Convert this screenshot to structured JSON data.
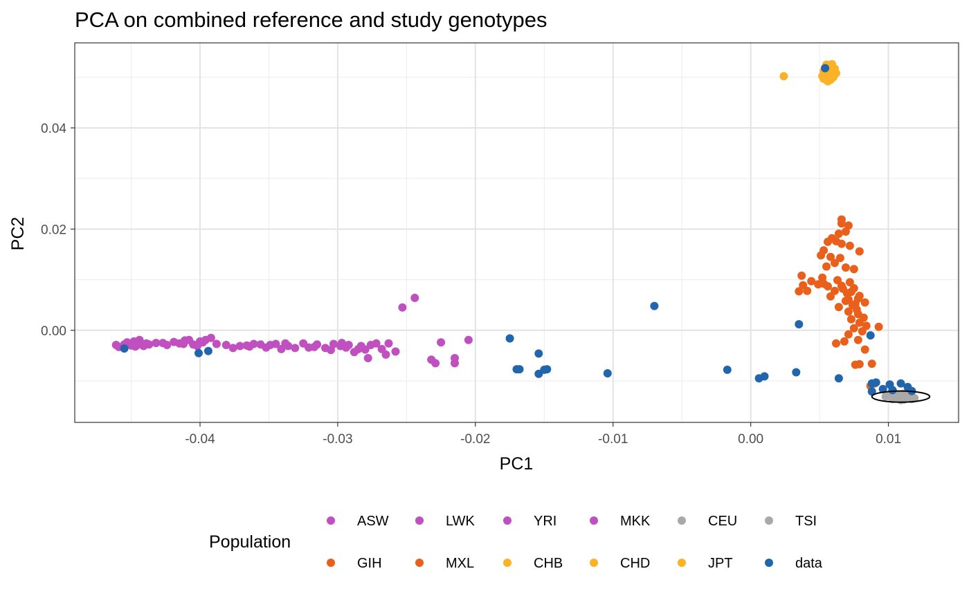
{
  "chart_data": {
    "type": "scatter",
    "title": "PCA on combined reference and study genotypes",
    "xlabel": "PC1",
    "ylabel": "PC2",
    "xlim": [
      -0.0491,
      0.0151
    ],
    "ylim": [
      -0.0182,
      0.0568
    ],
    "x_ticks": [
      -0.04,
      -0.03,
      -0.02,
      -0.01,
      0.0,
      0.01
    ],
    "x_tick_labels": [
      "-0.04",
      "-0.03",
      "-0.02",
      "-0.01",
      "0.00",
      "0.01"
    ],
    "y_ticks": [
      0.0,
      0.02,
      0.04
    ],
    "y_tick_labels": [
      "0.00",
      "0.02",
      "0.04"
    ],
    "grid": true,
    "legend": {
      "title": "Population",
      "position": "bottom",
      "entries": [
        {
          "label": "ASW",
          "color": "#c04fc0"
        },
        {
          "label": "LWK",
          "color": "#c04fc0"
        },
        {
          "label": "YRI",
          "color": "#c04fc0"
        },
        {
          "label": "MKK",
          "color": "#c04fc0"
        },
        {
          "label": "CEU",
          "color": "#a9a9a9"
        },
        {
          "label": "TSI",
          "color": "#a9a9a9"
        },
        {
          "label": "GIH",
          "color": "#e8601c"
        },
        {
          "label": "MXL",
          "color": "#e8601c"
        },
        {
          "label": "CHB",
          "color": "#fbb227"
        },
        {
          "label": "CHD",
          "color": "#fbb227"
        },
        {
          "label": "JPT",
          "color": "#fbb227"
        },
        {
          "label": "data",
          "color": "#2166ac"
        }
      ]
    },
    "annotation": {
      "type": "ellipse",
      "center": [
        0.0109,
        -0.0131
      ],
      "radii": [
        0.0021,
        0.0011
      ]
    },
    "series": [
      {
        "name": "ASW",
        "color": "#c04fc0",
        "points": [
          [
            -0.0455,
            -0.0028
          ],
          [
            -0.0448,
            -0.0022
          ],
          [
            -0.0441,
            -0.0031
          ],
          [
            -0.0432,
            -0.0025
          ],
          [
            -0.0415,
            -0.0026
          ],
          [
            -0.0408,
            -0.0019
          ],
          [
            -0.0398,
            -0.0024
          ],
          [
            -0.0381,
            -0.0029
          ],
          [
            -0.0364,
            -0.0032
          ],
          [
            -0.0345,
            -0.0027
          ],
          [
            -0.0331,
            -0.0035
          ],
          [
            -0.0315,
            -0.0028
          ],
          [
            -0.0298,
            -0.0031
          ],
          [
            -0.0285,
            -0.0037
          ],
          [
            -0.0276,
            -0.0029
          ],
          [
            -0.0263,
            -0.0026
          ],
          [
            -0.0253,
            0.0045
          ],
          [
            -0.0244,
            0.0064
          ],
          [
            -0.0232,
            -0.0058
          ],
          [
            -0.0229,
            -0.0065
          ],
          [
            -0.0215,
            -0.0055
          ],
          [
            -0.0215,
            -0.0065
          ],
          [
            -0.0205,
            -0.0019
          ],
          [
            -0.0225,
            -0.0024
          ]
        ]
      },
      {
        "name": "LWK",
        "color": "#c04fc0",
        "points": [
          [
            -0.0461,
            -0.0029
          ],
          [
            -0.0459,
            -0.0033
          ],
          [
            -0.0451,
            -0.0027
          ],
          [
            -0.0446,
            -0.003
          ],
          [
            -0.0444,
            -0.0019
          ],
          [
            -0.0437,
            -0.0028
          ],
          [
            -0.0427,
            -0.0025
          ],
          [
            -0.0419,
            -0.0023
          ],
          [
            -0.0411,
            -0.002
          ],
          [
            -0.0405,
            -0.0028
          ],
          [
            -0.0396,
            -0.0019
          ],
          [
            -0.0388,
            -0.0027
          ],
          [
            -0.0371,
            -0.0031
          ],
          [
            -0.0356,
            -0.0028
          ],
          [
            -0.0341,
            -0.0037
          ],
          [
            -0.0325,
            -0.0026
          ],
          [
            -0.0309,
            -0.0035
          ],
          [
            -0.0292,
            -0.0029
          ]
        ]
      },
      {
        "name": "YRI",
        "color": "#c04fc0",
        "points": [
          [
            -0.0453,
            -0.0024
          ],
          [
            -0.0447,
            -0.0032
          ],
          [
            -0.0439,
            -0.0026
          ],
          [
            -0.0424,
            -0.0029
          ],
          [
            -0.0402,
            -0.0031
          ],
          [
            -0.0392,
            -0.0015
          ],
          [
            -0.0376,
            -0.0035
          ],
          [
            -0.0361,
            -0.0027
          ],
          [
            -0.0349,
            -0.0029
          ],
          [
            -0.0336,
            -0.0031
          ],
          [
            -0.0321,
            -0.0034
          ],
          [
            -0.0305,
            -0.0039
          ],
          [
            -0.0297,
            -0.0025
          ],
          [
            -0.0288,
            -0.0043
          ],
          [
            -0.028,
            -0.0038
          ],
          [
            -0.0272,
            -0.0026
          ],
          [
            -0.0258,
            -0.0042
          ]
        ]
      },
      {
        "name": "MKK",
        "color": "#c04fc0",
        "points": [
          [
            -0.045,
            -0.003
          ],
          [
            -0.0443,
            -0.0025
          ],
          [
            -0.0412,
            -0.0027
          ],
          [
            -0.04,
            -0.0022
          ],
          [
            -0.0366,
            -0.003
          ],
          [
            -0.0352,
            -0.0034
          ],
          [
            -0.0338,
            -0.0026
          ],
          [
            -0.0317,
            -0.0033
          ],
          [
            -0.0303,
            -0.0027
          ],
          [
            -0.0294,
            -0.0034
          ],
          [
            -0.0283,
            -0.0031
          ],
          [
            -0.0278,
            -0.0055
          ],
          [
            -0.0268,
            -0.0037
          ],
          [
            -0.0265,
            -0.0048
          ]
        ]
      },
      {
        "name": "CEU",
        "color": "#a9a9a9",
        "points": [
          [
            0.0101,
            -0.0128
          ],
          [
            0.0106,
            -0.0134
          ],
          [
            0.011,
            -0.0126
          ],
          [
            0.0113,
            -0.0131
          ],
          [
            0.0117,
            -0.0136
          ],
          [
            0.0104,
            -0.0123
          ],
          [
            0.0109,
            -0.0138
          ],
          [
            0.0115,
            -0.0128
          ]
        ]
      },
      {
        "name": "TSI",
        "color": "#a9a9a9",
        "points": [
          [
            0.0098,
            -0.0131
          ],
          [
            0.0103,
            -0.0136
          ],
          [
            0.0108,
            -0.013
          ],
          [
            0.0112,
            -0.0125
          ],
          [
            0.0116,
            -0.0132
          ],
          [
            0.0119,
            -0.0134
          ],
          [
            0.0107,
            -0.0127
          ],
          [
            0.0111,
            -0.0137
          ]
        ]
      },
      {
        "name": "GIH",
        "color": "#e8601c",
        "points": [
          [
            0.0066,
            0.0219
          ],
          [
            0.0066,
            0.0211
          ],
          [
            0.0071,
            0.0207
          ],
          [
            0.0069,
            0.0195
          ],
          [
            0.0064,
            0.0191
          ],
          [
            0.0059,
            0.0182
          ],
          [
            0.0062,
            0.0176
          ],
          [
            0.0056,
            0.0175
          ],
          [
            0.0066,
            0.0171
          ],
          [
            0.0072,
            0.0167
          ],
          [
            0.0053,
            0.0158
          ],
          [
            0.0079,
            0.0156
          ],
          [
            0.0051,
            0.0148
          ],
          [
            0.0058,
            0.0145
          ],
          [
            0.0065,
            0.0143
          ],
          [
            0.0061,
            0.0133
          ],
          [
            0.0055,
            0.0126
          ],
          [
            0.0069,
            0.0124
          ],
          [
            0.0075,
            0.0121
          ],
          [
            0.0037,
            0.0108
          ],
          [
            0.0052,
            0.0104
          ],
          [
            0.0063,
            0.0099
          ],
          [
            0.0072,
            0.0095
          ],
          [
            0.0053,
            0.0092
          ],
          [
            0.0066,
            0.0088
          ],
          [
            0.0075,
            0.0083
          ],
          [
            0.0061,
            0.0078
          ],
          [
            0.007,
            0.0073
          ],
          [
            0.0058,
            0.0067
          ],
          [
            0.0078,
            0.0063
          ],
          [
            0.0069,
            0.0058
          ],
          [
            0.0083,
            0.0055
          ],
          [
            0.0074,
            0.005
          ],
          [
            0.0064,
            0.0046
          ],
          [
            0.0077,
            0.0041
          ]
        ]
      },
      {
        "name": "MXL",
        "color": "#e8601c",
        "points": [
          [
            0.0035,
            0.0077
          ],
          [
            0.0041,
            0.0078
          ],
          [
            0.0038,
            0.0089
          ],
          [
            0.0044,
            0.0097
          ],
          [
            0.0049,
            0.0091
          ],
          [
            0.0056,
            0.0087
          ],
          [
            0.0067,
            0.0082
          ],
          [
            0.0073,
            0.0076
          ],
          [
            0.0079,
            0.0068
          ],
          [
            0.0071,
            0.0061
          ],
          [
            0.0076,
            0.0052
          ],
          [
            0.0071,
            0.0037
          ],
          [
            0.0078,
            0.0032
          ],
          [
            0.0082,
            0.0025
          ],
          [
            0.0073,
            0.0022
          ],
          [
            0.0079,
            0.0015
          ],
          [
            0.0084,
            0.0009
          ],
          [
            0.0075,
            0.0004
          ],
          [
            0.0081,
            -0.0002
          ],
          [
            0.0071,
            -0.0008
          ],
          [
            0.0093,
            0.0007
          ],
          [
            0.0078,
            -0.0019
          ],
          [
            0.0062,
            -0.0026
          ],
          [
            0.0083,
            -0.0038
          ],
          [
            0.0076,
            -0.0068
          ],
          [
            0.0079,
            -0.0067
          ],
          [
            0.0088,
            -0.0066
          ],
          [
            0.009,
            -0.0105
          ],
          [
            0.0087,
            -0.011
          ],
          [
            0.0068,
            -0.0022
          ]
        ]
      },
      {
        "name": "CHB",
        "color": "#fbb227",
        "points": [
          [
            0.0053,
            0.0512
          ],
          [
            0.0056,
            0.0506
          ],
          [
            0.0058,
            0.0521
          ],
          [
            0.0061,
            0.0517
          ],
          [
            0.0052,
            0.0502
          ],
          [
            0.0057,
            0.0498
          ],
          [
            0.006,
            0.051
          ],
          [
            0.0055,
            0.0525
          ]
        ]
      },
      {
        "name": "CHD",
        "color": "#fbb227",
        "points": [
          [
            0.0054,
            0.0519
          ],
          [
            0.0057,
            0.0514
          ],
          [
            0.0059,
            0.0504
          ],
          [
            0.0062,
            0.0508
          ],
          [
            0.0053,
            0.0497
          ],
          [
            0.0056,
            0.0492
          ],
          [
            0.0059,
            0.0526
          ]
        ]
      },
      {
        "name": "JPT",
        "color": "#fbb227",
        "points": [
          [
            0.0024,
            0.0502
          ],
          [
            0.0055,
            0.0508
          ],
          [
            0.0058,
            0.0516
          ],
          [
            0.006,
            0.05
          ],
          [
            0.0054,
            0.0511
          ],
          [
            0.0058,
            0.0495
          ],
          [
            0.0057,
            0.0523
          ]
        ]
      },
      {
        "name": "data",
        "color": "#2166ac",
        "points": [
          [
            -0.0455,
            -0.0036
          ],
          [
            -0.0401,
            -0.0045
          ],
          [
            -0.0394,
            -0.0041
          ],
          [
            -0.0175,
            -0.0016
          ],
          [
            -0.017,
            -0.0077
          ],
          [
            -0.0168,
            -0.0077
          ],
          [
            -0.0154,
            -0.0046
          ],
          [
            -0.0154,
            -0.0086
          ],
          [
            -0.015,
            -0.0078
          ],
          [
            -0.0148,
            -0.0077
          ],
          [
            -0.0104,
            -0.0085
          ],
          [
            -0.007,
            0.0048
          ],
          [
            -0.0017,
            -0.0078
          ],
          [
            0.0006,
            -0.0095
          ],
          [
            0.001,
            -0.0091
          ],
          [
            0.0033,
            -0.0083
          ],
          [
            0.0035,
            0.0012
          ],
          [
            0.0064,
            -0.0095
          ],
          [
            0.0087,
            -0.001
          ],
          [
            0.0088,
            -0.0105
          ],
          [
            0.0091,
            -0.0103
          ],
          [
            0.0088,
            -0.0121
          ],
          [
            0.0101,
            -0.0107
          ],
          [
            0.0109,
            -0.0105
          ],
          [
            0.0114,
            -0.0112
          ],
          [
            0.0103,
            -0.0118
          ],
          [
            0.0117,
            -0.012
          ],
          [
            0.0096,
            -0.0116
          ],
          [
            0.0054,
            0.0518
          ]
        ]
      }
    ]
  }
}
